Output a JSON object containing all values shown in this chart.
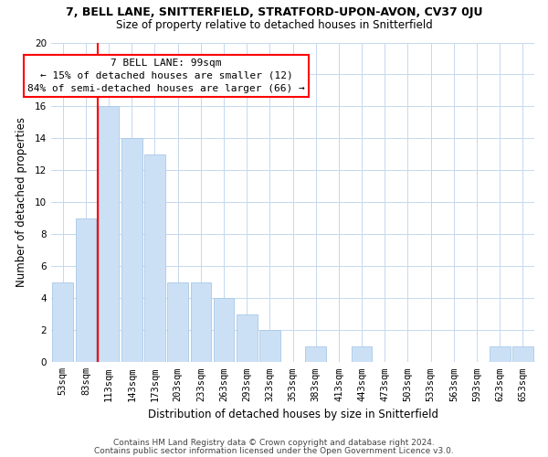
{
  "title_line1": "7, BELL LANE, SNITTERFIELD, STRATFORD-UPON-AVON, CV37 0JU",
  "title_line2": "Size of property relative to detached houses in Snitterfield",
  "xlabel": "Distribution of detached houses by size in Snitterfield",
  "ylabel": "Number of detached properties",
  "categories": [
    "53sqm",
    "83sqm",
    "113sqm",
    "143sqm",
    "173sqm",
    "203sqm",
    "233sqm",
    "263sqm",
    "293sqm",
    "323sqm",
    "353sqm",
    "383sqm",
    "413sqm",
    "443sqm",
    "473sqm",
    "503sqm",
    "533sqm",
    "563sqm",
    "593sqm",
    "623sqm",
    "653sqm"
  ],
  "values": [
    5,
    9,
    16,
    14,
    13,
    5,
    5,
    4,
    3,
    2,
    0,
    1,
    0,
    1,
    0,
    0,
    0,
    0,
    0,
    1,
    1
  ],
  "bar_color": "#cce0f5",
  "bar_edge_color": "#a8c8e8",
  "vline_color": "red",
  "vline_pos": 1.5,
  "ylim": [
    0,
    20
  ],
  "yticks": [
    0,
    2,
    4,
    6,
    8,
    10,
    12,
    14,
    16,
    18,
    20
  ],
  "annotation_title": "7 BELL LANE: 99sqm",
  "annotation_line1": "← 15% of detached houses are smaller (12)",
  "annotation_line2": "84% of semi-detached houses are larger (66) →",
  "annotation_box_facecolor": "white",
  "annotation_box_edgecolor": "red",
  "footer_line1": "Contains HM Land Registry data © Crown copyright and database right 2024.",
  "footer_line2": "Contains public sector information licensed under the Open Government Licence v3.0.",
  "background_color": "white",
  "grid_color": "#c5d8ee",
  "title1_fontsize": 9,
  "title2_fontsize": 8.5,
  "axis_label_fontsize": 8.5,
  "tick_fontsize": 7.5,
  "ann_fontsize": 8,
  "footer_fontsize": 6.5
}
